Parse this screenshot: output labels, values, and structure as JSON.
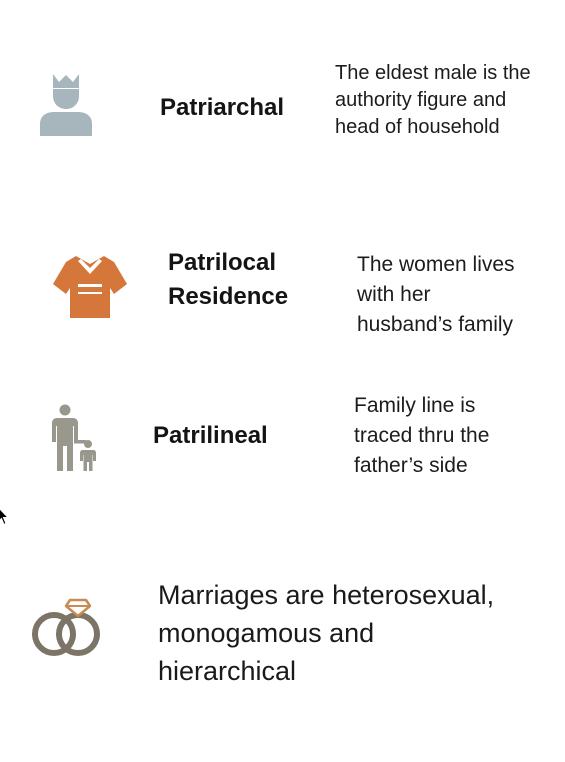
{
  "rows": [
    {
      "icon": "king-person-icon",
      "icon_color": "#a7b5bd",
      "term_lines": [
        "Patriarchal"
      ],
      "desc_lines": [
        "The eldest male is the",
        "authority figure and",
        "head of household"
      ]
    },
    {
      "icon": "kimono-icon",
      "icon_color": "#d5763b",
      "term_lines": [
        "Patrilocal",
        "Residence"
      ],
      "desc_lines": [
        "The women lives",
        "with her",
        "husband’s family"
      ]
    },
    {
      "icon": "father-child-icon",
      "icon_color": "#9a988d",
      "term_lines": [
        "Patrilineal"
      ],
      "desc_lines": [
        "Family line is",
        "traced thru the",
        "father’s side"
      ]
    },
    {
      "icon": "wedding-rings-icon",
      "icon_color": "#7c7567",
      "desc_lines": [
        "Marriages are heterosexual,",
        "monogamous and",
        "hierarchical"
      ]
    }
  ]
}
